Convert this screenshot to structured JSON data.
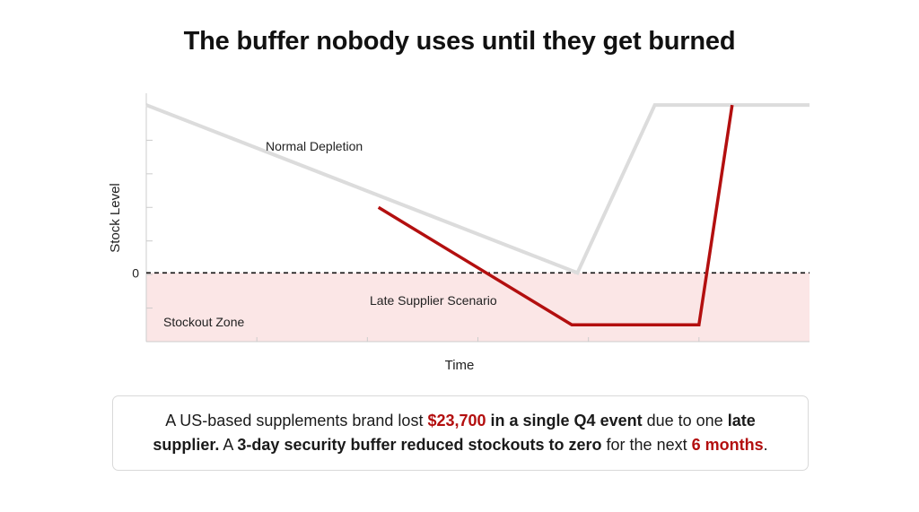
{
  "title": "The buffer nobody uses until they get burned",
  "chart_data": {
    "type": "line",
    "title": "The buffer nobody uses until they get burned",
    "xlabel": "Time",
    "ylabel": "Stock Level",
    "y_tick_labels": [
      "0"
    ],
    "zero_line": "dashed",
    "grid": false,
    "series": [
      {
        "name": "Normal Depletion",
        "color": "#dcdcdc",
        "points": [
          [
            0,
            5
          ],
          [
            3.9,
            0
          ],
          [
            4.6,
            5
          ],
          [
            6,
            5
          ]
        ]
      },
      {
        "name": "Late Supplier Scenario",
        "color": "#b30f0f",
        "points": [
          [
            2.1,
            1.95
          ],
          [
            3.85,
            -1.55
          ],
          [
            5.0,
            -1.55
          ],
          [
            5.3,
            5
          ]
        ]
      }
    ],
    "regions": [
      {
        "label": "Stockout Zone",
        "y_from": 0,
        "y_to": -2.05,
        "color": "#fbe6e6"
      }
    ],
    "xlim": [
      0,
      6
    ],
    "ylim": [
      -2.05,
      5.35
    ]
  },
  "caption": {
    "p1": "A US-based supplements brand lost ",
    "amount": "$23,700",
    "p2": " in a single Q4 event",
    "p3": " due to one ",
    "p4": "late supplier.",
    "p5": " A ",
    "p6": "3-day security buffer reduced stockouts to zero",
    "p7": " for the next ",
    "duration": "6 months",
    "p8": "."
  }
}
